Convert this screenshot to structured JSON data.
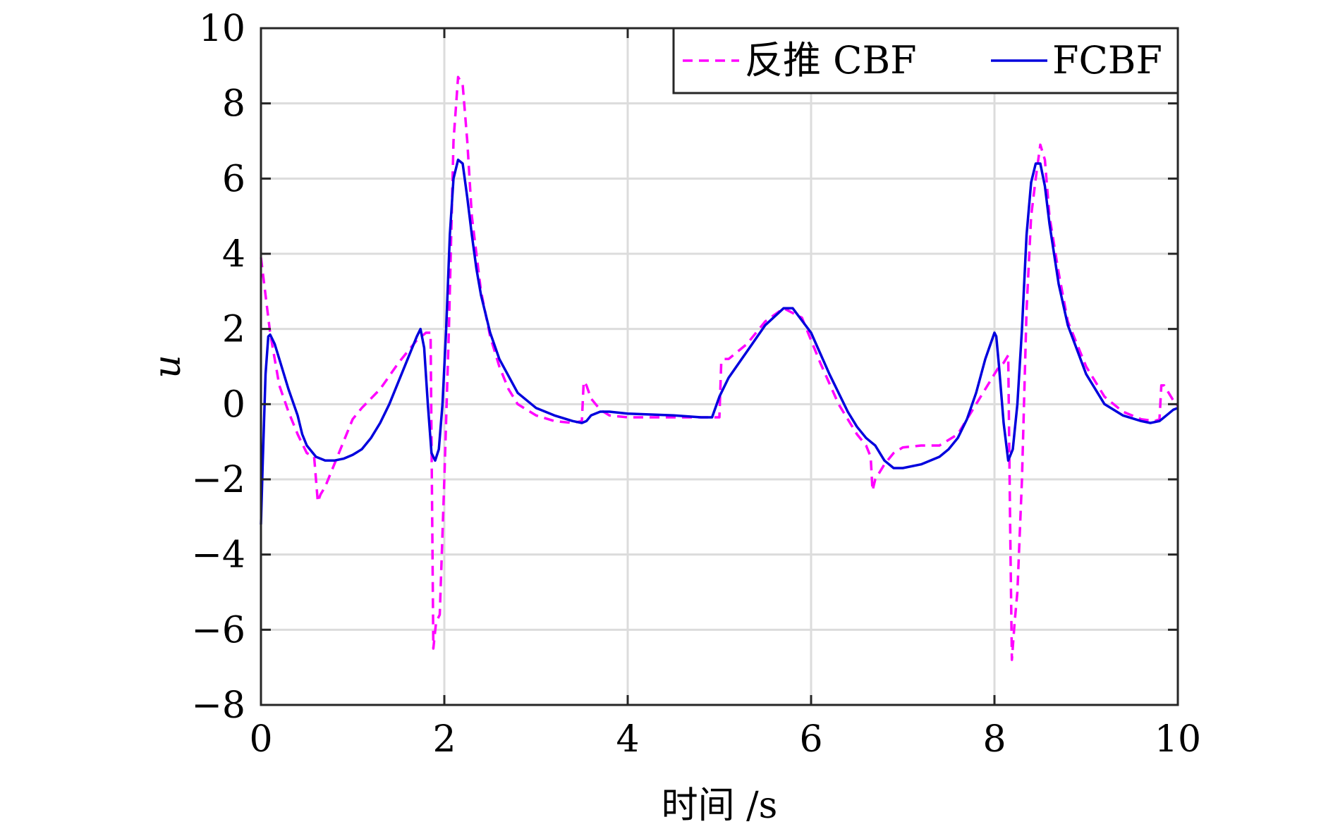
{
  "chart_data": {
    "type": "line",
    "xlabel": "时间 /s",
    "ylabel": "u",
    "xlim": [
      0,
      10
    ],
    "ylim": [
      -8,
      10
    ],
    "xticks": [
      0,
      2,
      4,
      6,
      8,
      10
    ],
    "yticks": [
      -8,
      -6,
      -4,
      -2,
      0,
      2,
      4,
      6,
      8,
      10
    ],
    "xtick_labels": [
      "0",
      "2",
      "4",
      "6",
      "8",
      "10"
    ],
    "ytick_labels": [
      "−8",
      "−6",
      "−4",
      "−2",
      "0",
      "2",
      "4",
      "6",
      "8",
      "10"
    ],
    "grid": true,
    "legend_position": "top-right",
    "series": [
      {
        "name": "反推 CBF",
        "color": "#ff00ff",
        "style": "dashed",
        "x": [
          0,
          0.1,
          0.2,
          0.3,
          0.4,
          0.5,
          0.58,
          0.62,
          0.65,
          0.7,
          0.8,
          0.9,
          1.0,
          1.1,
          1.3,
          1.5,
          1.6,
          1.7,
          1.75,
          1.8,
          1.85,
          1.88,
          1.91,
          1.95,
          2.0,
          2.05,
          2.1,
          2.15,
          2.2,
          2.25,
          2.3,
          2.4,
          2.5,
          2.6,
          2.7,
          2.8,
          3.0,
          3.2,
          3.4,
          3.5,
          3.52,
          3.55,
          3.6,
          3.7,
          3.8,
          4.0,
          4.5,
          5.0,
          5.02,
          5.05,
          5.1,
          5.3,
          5.5,
          5.7,
          5.9,
          6.1,
          6.3,
          6.5,
          6.6,
          6.65,
          6.67,
          6.7,
          6.8,
          6.9,
          7.0,
          7.2,
          7.4,
          7.6,
          7.8,
          7.9,
          8.0,
          8.05,
          8.1,
          8.15,
          8.17,
          8.19,
          8.22,
          8.25,
          8.3,
          8.35,
          8.4,
          8.45,
          8.5,
          8.55,
          8.6,
          8.7,
          8.8,
          9.0,
          9.2,
          9.4,
          9.6,
          9.75,
          9.8,
          9.82,
          9.85,
          9.9,
          9.95,
          10.0
        ],
        "y": [
          3.9,
          1.9,
          0.5,
          -0.2,
          -0.8,
          -1.3,
          -1.4,
          -2.6,
          -2.4,
          -2.2,
          -1.6,
          -1.0,
          -0.4,
          -0.1,
          0.4,
          1.1,
          1.4,
          1.7,
          1.8,
          1.9,
          1.9,
          -6.5,
          -5.8,
          -5.6,
          -2.0,
          2.0,
          7.0,
          8.7,
          8.5,
          7.0,
          5.0,
          3.0,
          1.8,
          1.0,
          0.4,
          0.0,
          -0.3,
          -0.45,
          -0.5,
          -0.45,
          0.6,
          0.5,
          0.15,
          -0.15,
          -0.3,
          -0.35,
          -0.35,
          -0.35,
          1.1,
          1.2,
          1.2,
          1.6,
          2.2,
          2.55,
          2.3,
          1.1,
          0.0,
          -0.8,
          -1.1,
          -1.4,
          -2.3,
          -2.0,
          -1.6,
          -1.3,
          -1.15,
          -1.1,
          -1.1,
          -0.8,
          0.0,
          0.4,
          0.8,
          1.0,
          1.1,
          1.3,
          -3.0,
          -6.8,
          -5.8,
          -5.0,
          -2.0,
          2.5,
          5.0,
          6.0,
          6.9,
          6.5,
          5.0,
          3.5,
          2.2,
          1.0,
          0.2,
          -0.2,
          -0.4,
          -0.45,
          -0.4,
          0.5,
          0.5,
          0.3,
          0.1,
          -0.05
        ]
      },
      {
        "name": "FCBF",
        "color": "#0000dd",
        "style": "solid",
        "x": [
          0,
          0.02,
          0.05,
          0.08,
          0.1,
          0.15,
          0.2,
          0.3,
          0.4,
          0.45,
          0.5,
          0.6,
          0.7,
          0.8,
          0.9,
          1.0,
          1.1,
          1.2,
          1.3,
          1.4,
          1.5,
          1.6,
          1.7,
          1.74,
          1.78,
          1.82,
          1.86,
          1.9,
          1.94,
          1.98,
          2.02,
          2.06,
          2.1,
          2.15,
          2.2,
          2.25,
          2.3,
          2.35,
          2.4,
          2.5,
          2.6,
          2.8,
          3.0,
          3.2,
          3.4,
          3.5,
          3.55,
          3.6,
          3.7,
          3.8,
          4.0,
          4.5,
          4.8,
          4.92,
          5.0,
          5.1,
          5.3,
          5.5,
          5.7,
          5.8,
          6.0,
          6.2,
          6.4,
          6.5,
          6.6,
          6.65,
          6.7,
          6.75,
          6.8,
          6.9,
          7.0,
          7.2,
          7.4,
          7.5,
          7.6,
          7.7,
          7.8,
          7.9,
          8.0,
          8.02,
          8.05,
          8.1,
          8.15,
          8.2,
          8.25,
          8.3,
          8.35,
          8.4,
          8.45,
          8.5,
          8.55,
          8.6,
          8.7,
          8.8,
          9.0,
          9.2,
          9.4,
          9.6,
          9.7,
          9.8,
          9.85,
          9.9,
          9.95,
          10.0
        ],
        "y": [
          -3.2,
          -1.5,
          0.8,
          1.8,
          1.85,
          1.6,
          1.2,
          0.4,
          -0.3,
          -0.8,
          -1.1,
          -1.4,
          -1.5,
          -1.5,
          -1.45,
          -1.35,
          -1.2,
          -0.9,
          -0.5,
          0.0,
          0.6,
          1.2,
          1.8,
          2.0,
          1.5,
          0.0,
          -1.3,
          -1.5,
          -1.2,
          0.0,
          2.0,
          4.5,
          6.0,
          6.5,
          6.4,
          5.5,
          4.5,
          3.6,
          2.9,
          1.9,
          1.2,
          0.3,
          -0.1,
          -0.3,
          -0.45,
          -0.5,
          -0.45,
          -0.3,
          -0.2,
          -0.2,
          -0.25,
          -0.3,
          -0.35,
          -0.35,
          0.2,
          0.7,
          1.4,
          2.1,
          2.55,
          2.55,
          1.9,
          0.8,
          -0.2,
          -0.6,
          -0.9,
          -1.0,
          -1.1,
          -1.3,
          -1.5,
          -1.7,
          -1.7,
          -1.6,
          -1.4,
          -1.2,
          -0.9,
          -0.4,
          0.3,
          1.2,
          1.9,
          1.8,
          1.0,
          -0.5,
          -1.5,
          -1.2,
          0.0,
          2.0,
          4.5,
          5.9,
          6.4,
          6.4,
          5.8,
          4.8,
          3.2,
          2.1,
          0.8,
          0.0,
          -0.3,
          -0.45,
          -0.5,
          -0.45,
          -0.35,
          -0.25,
          -0.15,
          -0.1
        ]
      }
    ]
  }
}
